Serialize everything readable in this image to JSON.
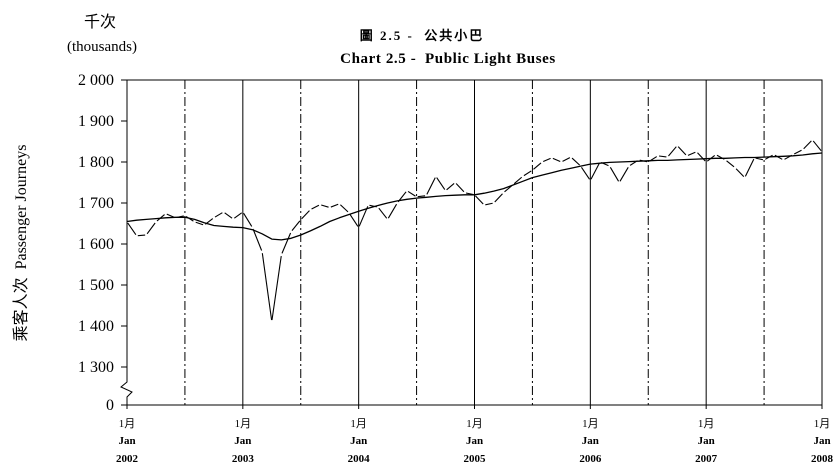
{
  "chart_data": {
    "type": "line",
    "title_zh": "圖 2.5 -  公共小巴",
    "title": "Chart 2.5 -  Public Light Buses",
    "unit_zh": "千次",
    "unit": "(thousands)",
    "ylabel": "乘客人次  Passenger Journeys",
    "ylim": [
      0,
      2000
    ],
    "y_break": [
      0,
      1300
    ],
    "grid": true,
    "y_ticks": [
      {
        "label": "2 000",
        "value": 2000
      },
      {
        "label": "1 900",
        "value": 1900
      },
      {
        "label": "1 800",
        "value": 1800
      },
      {
        "label": "1 700",
        "value": 1700
      },
      {
        "label": "1 600",
        "value": 1600
      },
      {
        "label": "1 500",
        "value": 1500
      },
      {
        "label": "1 400",
        "value": 1400
      },
      {
        "label": "1 300",
        "value": 1300
      },
      {
        "label": "0",
        "value": 0
      }
    ],
    "x_ticks": [
      {
        "month_zh": "1月",
        "month": "Jan",
        "year": "2002",
        "date": "2002-01"
      },
      {
        "month_zh": "1月",
        "month": "Jan",
        "year": "2003",
        "date": "2003-01"
      },
      {
        "month_zh": "1月",
        "month": "Jan",
        "year": "2004",
        "date": "2004-01"
      },
      {
        "month_zh": "1月",
        "month": "Jan",
        "year": "2005",
        "date": "2005-01"
      },
      {
        "month_zh": "1月",
        "month": "Jan",
        "year": "2006",
        "date": "2006-01"
      },
      {
        "month_zh": "1月",
        "month": "Jan",
        "year": "2007",
        "date": "2007-01"
      },
      {
        "month_zh": "1月",
        "month": "Jan",
        "year": "2008",
        "date": "2008-01"
      }
    ],
    "x": [
      "2002-01",
      "2002-02",
      "2002-03",
      "2002-04",
      "2002-05",
      "2002-06",
      "2002-07",
      "2002-08",
      "2002-09",
      "2002-10",
      "2002-11",
      "2002-12",
      "2003-01",
      "2003-02",
      "2003-03",
      "2003-04",
      "2003-05",
      "2003-06",
      "2003-07",
      "2003-08",
      "2003-09",
      "2003-10",
      "2003-11",
      "2003-12",
      "2004-01",
      "2004-02",
      "2004-03",
      "2004-04",
      "2004-05",
      "2004-06",
      "2004-07",
      "2004-08",
      "2004-09",
      "2004-10",
      "2004-11",
      "2004-12",
      "2005-01",
      "2005-02",
      "2005-03",
      "2005-04",
      "2005-05",
      "2005-06",
      "2005-07",
      "2005-08",
      "2005-09",
      "2005-10",
      "2005-11",
      "2005-12",
      "2006-01",
      "2006-02",
      "2006-03",
      "2006-04",
      "2006-05",
      "2006-06",
      "2006-07",
      "2006-08",
      "2006-09",
      "2006-10",
      "2006-11",
      "2006-12",
      "2007-01",
      "2007-02",
      "2007-03",
      "2007-04",
      "2007-05",
      "2007-06",
      "2007-07",
      "2007-08",
      "2007-09",
      "2007-10",
      "2007-11",
      "2007-12",
      "2008-01"
    ],
    "series": [
      {
        "values": [
          1654,
          1620,
          1622,
          1654,
          1674,
          1664,
          1669,
          1654,
          1646,
          1664,
          1678,
          1661,
          1678,
          1640,
          1581,
          1411,
          1574,
          1630,
          1659,
          1684,
          1696,
          1689,
          1698,
          1676,
          1640,
          1695,
          1690,
          1660,
          1700,
          1730,
          1715,
          1718,
          1765,
          1730,
          1750,
          1725,
          1720,
          1695,
          1700,
          1725,
          1745,
          1765,
          1780,
          1800,
          1810,
          1800,
          1812,
          1790,
          1755,
          1800,
          1790,
          1750,
          1790,
          1805,
          1800,
          1815,
          1812,
          1840,
          1815,
          1825,
          1800,
          1818,
          1805,
          1786,
          1762,
          1810,
          1805,
          1818,
          1805,
          1818,
          1830,
          1854,
          1825
        ]
      },
      {
        "values": [
          1655,
          1658,
          1660,
          1662,
          1664,
          1665,
          1665,
          1660,
          1652,
          1645,
          1643,
          1641,
          1640,
          1635,
          1625,
          1612,
          1610,
          1614,
          1622,
          1632,
          1643,
          1655,
          1664,
          1672,
          1680,
          1687,
          1694,
          1700,
          1705,
          1709,
          1712,
          1714,
          1716,
          1718,
          1719,
          1720,
          1720,
          1724,
          1729,
          1735,
          1744,
          1753,
          1762,
          1768,
          1774,
          1780,
          1785,
          1790,
          1795,
          1797,
          1799,
          1800,
          1801,
          1802,
          1803,
          1804,
          1804,
          1805,
          1806,
          1807,
          1808,
          1809,
          1809,
          1810,
          1811,
          1811,
          1812,
          1813,
          1814,
          1815,
          1817,
          1820,
          1822
        ]
      }
    ]
  }
}
